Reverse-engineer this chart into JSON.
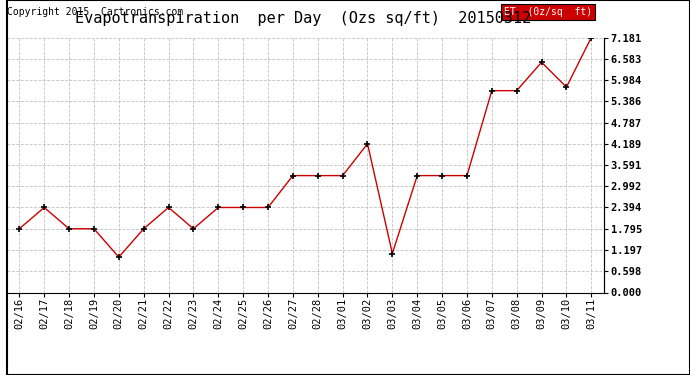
{
  "title": "Evapotranspiration  per Day  (Ozs sq/ft)  20150312",
  "copyright": "Copyright 2015  Cartronics.com",
  "legend_label": "ET  (0z/sq  ft)",
  "legend_bg": "#cc0000",
  "legend_text_color": "#ffffff",
  "x_labels": [
    "02/16",
    "02/17",
    "02/18",
    "02/19",
    "02/20",
    "02/21",
    "02/22",
    "02/23",
    "02/24",
    "02/25",
    "02/26",
    "02/27",
    "02/28",
    "03/01",
    "03/02",
    "03/03",
    "03/04",
    "03/05",
    "03/06",
    "03/07",
    "03/08",
    "03/09",
    "03/10",
    "03/11"
  ],
  "y_values": [
    1.795,
    2.394,
    1.795,
    1.795,
    0.997,
    1.795,
    2.394,
    1.795,
    2.394,
    2.394,
    2.394,
    3.292,
    3.292,
    3.292,
    4.189,
    1.098,
    3.292,
    3.292,
    3.292,
    5.684,
    5.684,
    6.484,
    5.784,
    7.181
  ],
  "y_ticks": [
    0.0,
    0.598,
    1.197,
    1.795,
    2.394,
    2.992,
    3.591,
    4.189,
    4.787,
    5.386,
    5.984,
    6.583,
    7.181
  ],
  "y_min": 0.0,
  "y_max": 7.181,
  "line_color": "#cc0000",
  "marker": "+",
  "marker_color": "#000000",
  "background_color": "#ffffff",
  "grid_color": "#bbbbbb",
  "title_fontsize": 11,
  "tick_fontsize": 7.5,
  "copyright_fontsize": 7
}
